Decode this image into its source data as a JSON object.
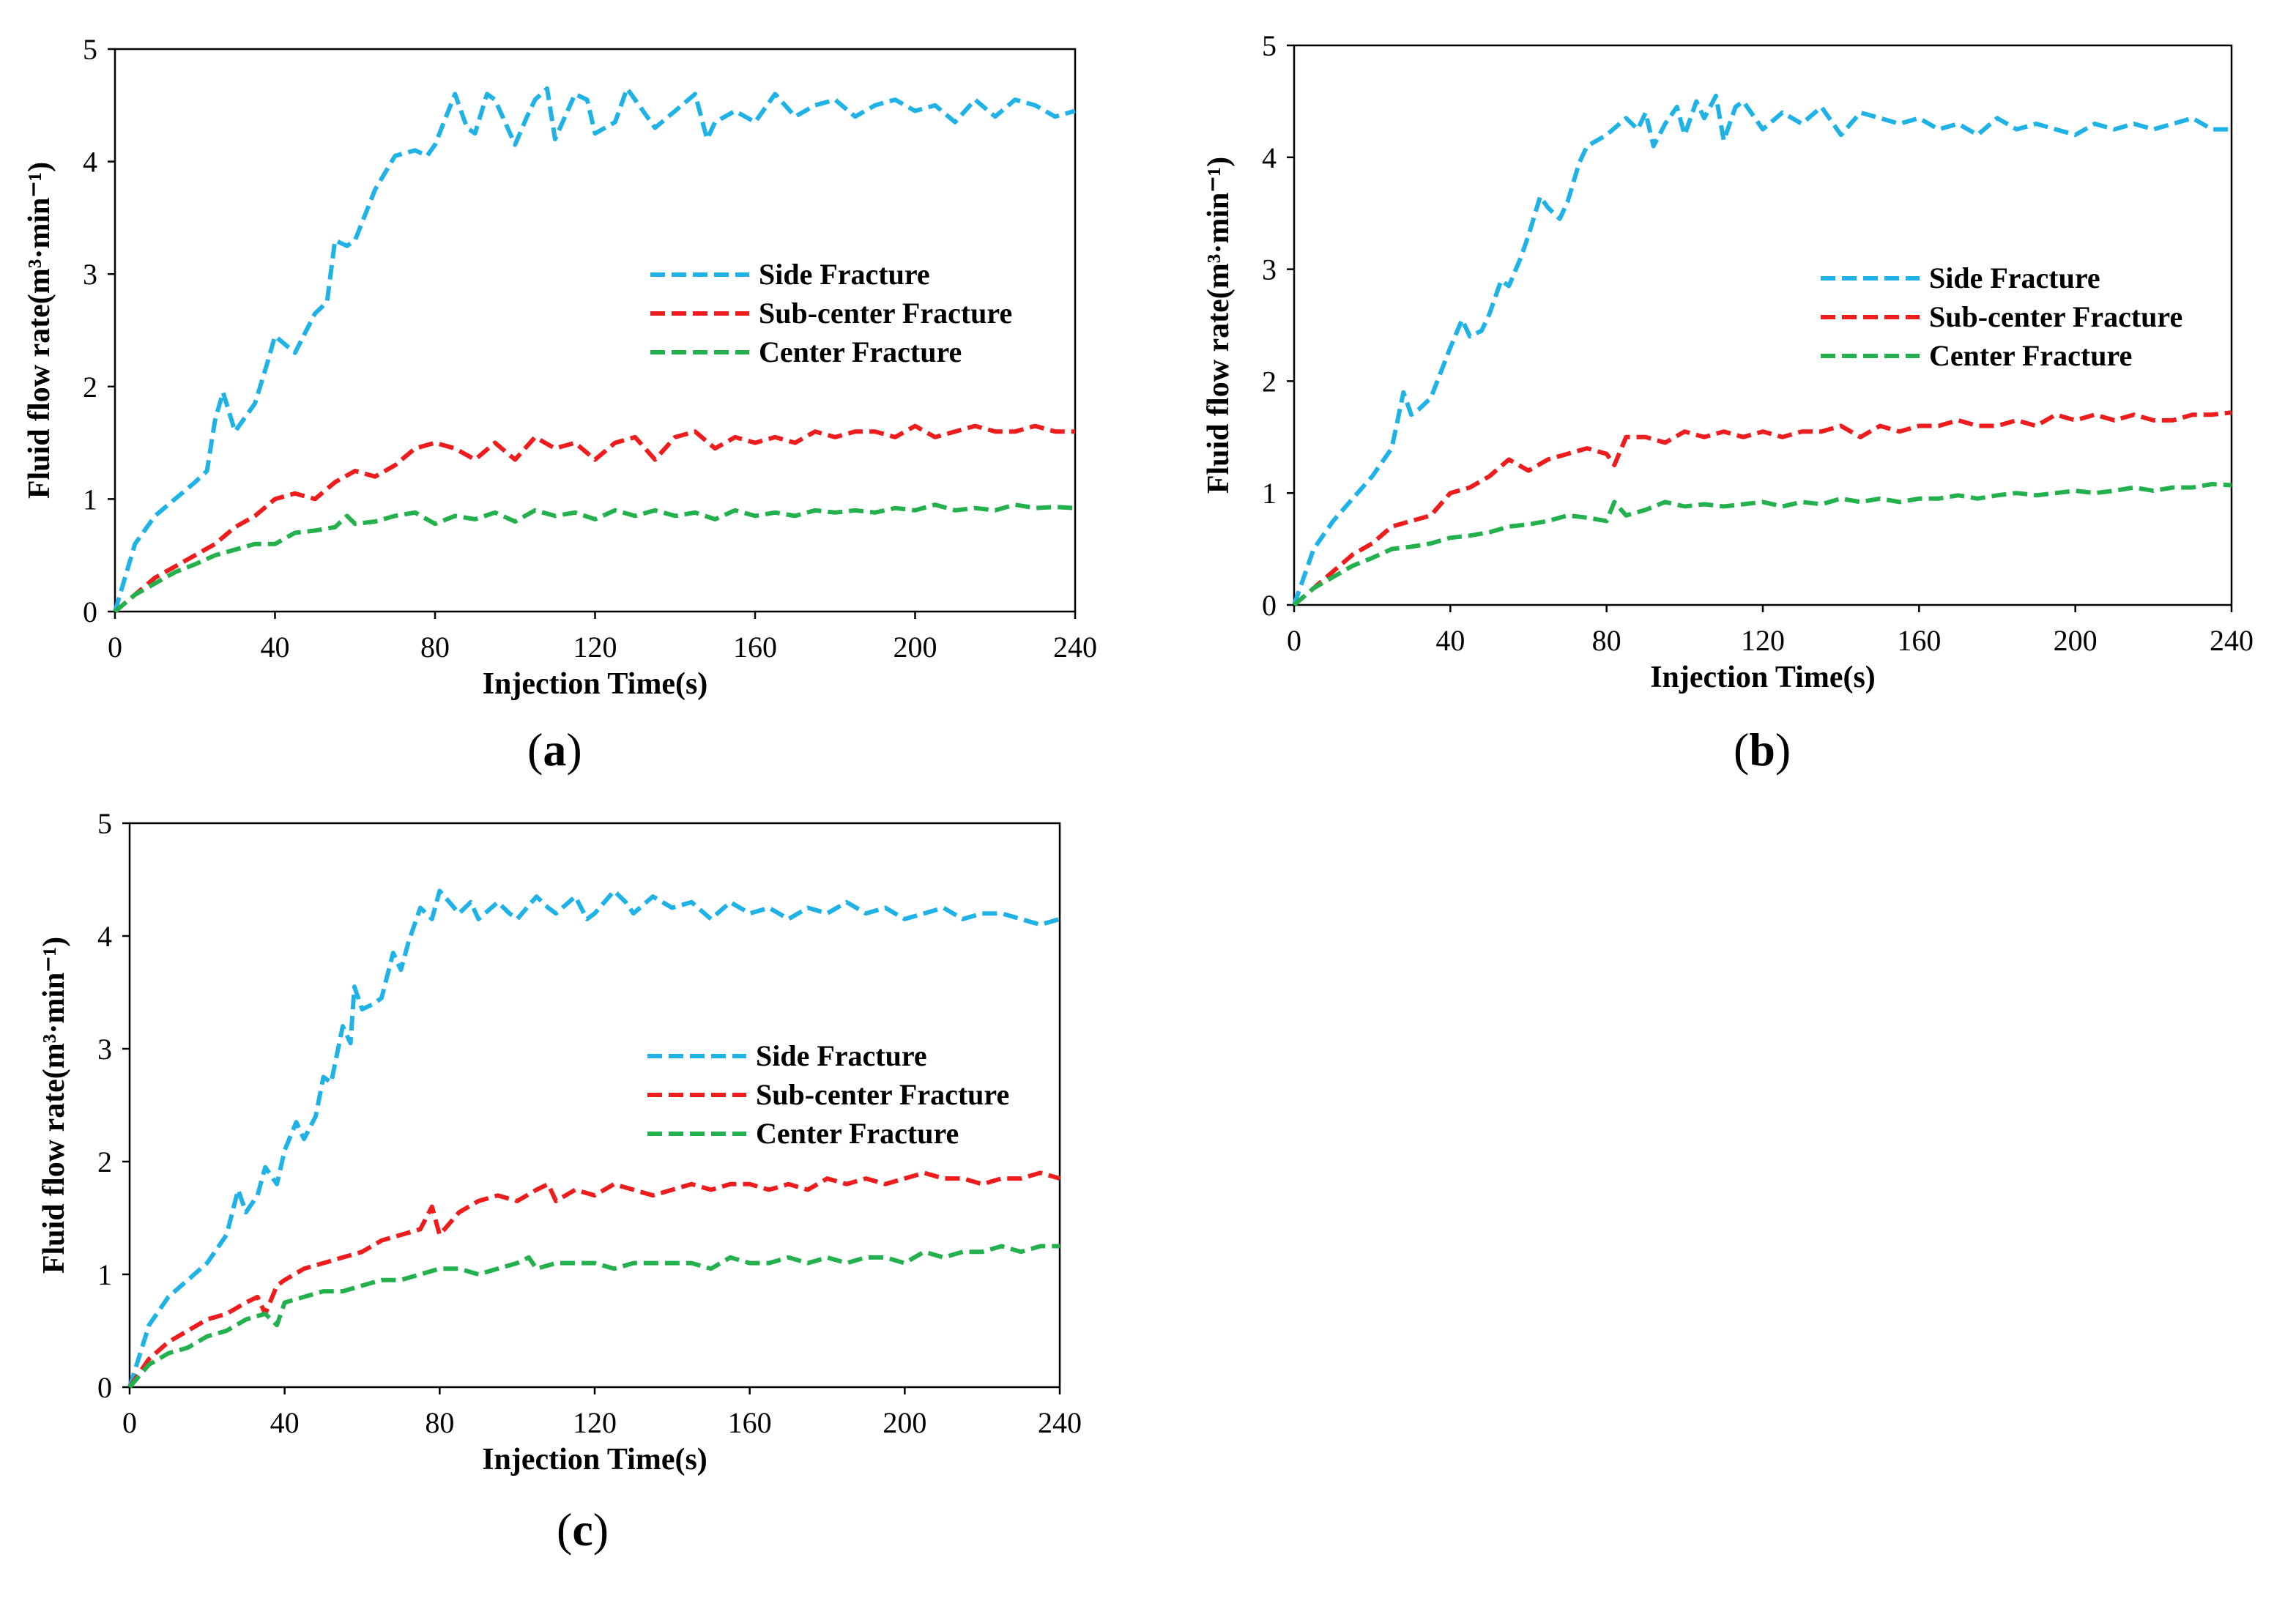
{
  "chart_data": [
    {
      "type": "line",
      "panel_label": "a",
      "xlabel": "Injection Time(s)",
      "ylabel": "Fluid flow rate(m³·min⁻¹)",
      "xlim": [
        0,
        240
      ],
      "ylim": [
        0,
        5
      ],
      "x_ticks": [
        "0",
        "40",
        "80",
        "120",
        "160",
        "200",
        "240"
      ],
      "y_ticks": [
        "0",
        "1",
        "2",
        "3",
        "4",
        "5"
      ],
      "legend_position": "right",
      "series": [
        {
          "name": "Side Fracture",
          "color": "#1fb2e6",
          "x": [
            0,
            5,
            10,
            15,
            20,
            23,
            25,
            27,
            30,
            35,
            38,
            40,
            45,
            50,
            53,
            55,
            58,
            60,
            65,
            70,
            75,
            78,
            80,
            85,
            88,
            90,
            93,
            95,
            100,
            103,
            105,
            108,
            110,
            115,
            118,
            120,
            125,
            128,
            130,
            135,
            140,
            145,
            148,
            150,
            155,
            160,
            165,
            170,
            175,
            180,
            185,
            190,
            195,
            200,
            205,
            210,
            215,
            220,
            225,
            230,
            235,
            240
          ],
          "y": [
            0,
            0.6,
            0.85,
            1.0,
            1.15,
            1.25,
            1.7,
            1.95,
            1.6,
            1.85,
            2.2,
            2.45,
            2.3,
            2.65,
            2.75,
            3.3,
            3.25,
            3.3,
            3.75,
            4.05,
            4.1,
            4.05,
            4.15,
            4.6,
            4.3,
            4.25,
            4.6,
            4.55,
            4.15,
            4.4,
            4.55,
            4.65,
            4.2,
            4.6,
            4.55,
            4.25,
            4.35,
            4.65,
            4.55,
            4.3,
            4.45,
            4.6,
            4.2,
            4.35,
            4.45,
            4.35,
            4.6,
            4.4,
            4.5,
            4.55,
            4.4,
            4.5,
            4.55,
            4.45,
            4.5,
            4.35,
            4.55,
            4.4,
            4.55,
            4.5,
            4.4,
            4.45
          ]
        },
        {
          "name": "Sub-center Fracture",
          "color": "#ee1c1c",
          "x": [
            0,
            5,
            10,
            15,
            20,
            25,
            30,
            35,
            40,
            45,
            50,
            55,
            60,
            65,
            70,
            75,
            80,
            85,
            90,
            95,
            100,
            105,
            110,
            115,
            120,
            125,
            130,
            135,
            140,
            145,
            150,
            155,
            160,
            165,
            170,
            175,
            180,
            185,
            190,
            195,
            200,
            205,
            210,
            215,
            220,
            225,
            230,
            235,
            240
          ],
          "y": [
            0,
            0.15,
            0.3,
            0.4,
            0.5,
            0.6,
            0.75,
            0.85,
            1.0,
            1.05,
            1.0,
            1.15,
            1.25,
            1.2,
            1.3,
            1.45,
            1.5,
            1.45,
            1.35,
            1.5,
            1.35,
            1.55,
            1.45,
            1.5,
            1.35,
            1.5,
            1.55,
            1.35,
            1.55,
            1.6,
            1.45,
            1.55,
            1.5,
            1.55,
            1.5,
            1.6,
            1.55,
            1.6,
            1.6,
            1.55,
            1.65,
            1.55,
            1.6,
            1.65,
            1.6,
            1.6,
            1.65,
            1.6,
            1.6
          ]
        },
        {
          "name": "Center Fracture",
          "color": "#22b14c",
          "x": [
            0,
            5,
            10,
            15,
            20,
            25,
            30,
            35,
            40,
            45,
            50,
            55,
            58,
            60,
            65,
            70,
            75,
            80,
            85,
            90,
            95,
            100,
            105,
            110,
            115,
            120,
            125,
            130,
            135,
            140,
            145,
            150,
            155,
            160,
            165,
            170,
            175,
            180,
            185,
            190,
            195,
            200,
            205,
            210,
            215,
            220,
            225,
            230,
            235,
            240
          ],
          "y": [
            0,
            0.15,
            0.25,
            0.35,
            0.42,
            0.5,
            0.55,
            0.6,
            0.6,
            0.7,
            0.72,
            0.75,
            0.85,
            0.78,
            0.8,
            0.85,
            0.88,
            0.78,
            0.85,
            0.82,
            0.88,
            0.8,
            0.9,
            0.85,
            0.88,
            0.82,
            0.9,
            0.85,
            0.9,
            0.85,
            0.88,
            0.82,
            0.9,
            0.85,
            0.88,
            0.85,
            0.9,
            0.88,
            0.9,
            0.88,
            0.92,
            0.9,
            0.95,
            0.9,
            0.92,
            0.9,
            0.95,
            0.92,
            0.93,
            0.92
          ]
        }
      ]
    },
    {
      "type": "line",
      "panel_label": "b",
      "xlabel": "Injection Time(s)",
      "ylabel": "Fluid flow rate(m³·min⁻¹)",
      "xlim": [
        0,
        240
      ],
      "ylim": [
        0,
        5
      ],
      "x_ticks": [
        "0",
        "40",
        "80",
        "120",
        "160",
        "200",
        "240"
      ],
      "y_ticks": [
        "0",
        "1",
        "2",
        "3",
        "4",
        "5"
      ],
      "legend_position": "right",
      "series": [
        {
          "name": "Side Fracture",
          "color": "#1fb2e6",
          "x": [
            0,
            5,
            10,
            15,
            20,
            25,
            28,
            30,
            32,
            35,
            40,
            43,
            45,
            48,
            50,
            53,
            55,
            58,
            60,
            63,
            65,
            68,
            70,
            73,
            75,
            80,
            85,
            88,
            90,
            92,
            95,
            98,
            100,
            103,
            105,
            108,
            110,
            113,
            115,
            120,
            125,
            130,
            135,
            140,
            145,
            150,
            155,
            160,
            165,
            170,
            175,
            180,
            185,
            190,
            195,
            200,
            205,
            210,
            215,
            220,
            225,
            230,
            235,
            240
          ],
          "y": [
            0,
            0.5,
            0.75,
            0.95,
            1.15,
            1.4,
            1.9,
            1.7,
            1.75,
            1.85,
            2.3,
            2.55,
            2.4,
            2.45,
            2.6,
            2.9,
            2.85,
            3.1,
            3.3,
            3.65,
            3.55,
            3.45,
            3.6,
            3.95,
            4.1,
            4.2,
            4.35,
            4.25,
            4.4,
            4.1,
            4.3,
            4.45,
            4.2,
            4.5,
            4.35,
            4.55,
            4.15,
            4.45,
            4.5,
            4.25,
            4.4,
            4.3,
            4.45,
            4.2,
            4.4,
            4.35,
            4.3,
            4.35,
            4.25,
            4.3,
            4.2,
            4.35,
            4.25,
            4.3,
            4.25,
            4.2,
            4.3,
            4.25,
            4.3,
            4.25,
            4.3,
            4.35,
            4.25,
            4.25
          ]
        },
        {
          "name": "Sub-center Fracture",
          "color": "#ee1c1c",
          "x": [
            0,
            5,
            10,
            15,
            20,
            25,
            30,
            35,
            40,
            45,
            50,
            55,
            60,
            65,
            70,
            75,
            80,
            82,
            85,
            90,
            95,
            100,
            105,
            110,
            115,
            120,
            125,
            130,
            135,
            140,
            145,
            150,
            155,
            160,
            165,
            170,
            175,
            180,
            185,
            190,
            195,
            200,
            205,
            210,
            215,
            220,
            225,
            230,
            235,
            240
          ],
          "y": [
            0,
            0.15,
            0.3,
            0.45,
            0.55,
            0.7,
            0.75,
            0.8,
            1.0,
            1.05,
            1.15,
            1.3,
            1.2,
            1.3,
            1.35,
            1.4,
            1.35,
            1.25,
            1.5,
            1.5,
            1.45,
            1.55,
            1.5,
            1.55,
            1.5,
            1.55,
            1.5,
            1.55,
            1.55,
            1.6,
            1.5,
            1.6,
            1.55,
            1.6,
            1.6,
            1.65,
            1.6,
            1.6,
            1.65,
            1.6,
            1.7,
            1.65,
            1.7,
            1.65,
            1.7,
            1.65,
            1.65,
            1.7,
            1.7,
            1.72
          ]
        },
        {
          "name": "Center Fracture",
          "color": "#22b14c",
          "x": [
            0,
            5,
            10,
            15,
            20,
            25,
            30,
            35,
            40,
            45,
            50,
            55,
            60,
            65,
            70,
            75,
            80,
            82,
            85,
            90,
            95,
            100,
            105,
            110,
            115,
            120,
            125,
            130,
            135,
            140,
            145,
            150,
            155,
            160,
            165,
            170,
            175,
            180,
            185,
            190,
            195,
            200,
            205,
            210,
            215,
            220,
            225,
            230,
            235,
            240
          ],
          "y": [
            0,
            0.15,
            0.25,
            0.35,
            0.42,
            0.5,
            0.52,
            0.55,
            0.6,
            0.62,
            0.65,
            0.7,
            0.72,
            0.75,
            0.8,
            0.78,
            0.75,
            0.92,
            0.8,
            0.85,
            0.92,
            0.88,
            0.9,
            0.88,
            0.9,
            0.92,
            0.88,
            0.92,
            0.9,
            0.95,
            0.92,
            0.95,
            0.92,
            0.95,
            0.95,
            0.98,
            0.95,
            0.98,
            1.0,
            0.98,
            1.0,
            1.02,
            1.0,
            1.02,
            1.05,
            1.02,
            1.05,
            1.05,
            1.08,
            1.07
          ]
        }
      ]
    },
    {
      "type": "line",
      "panel_label": "c",
      "xlabel": "Injection Time(s)",
      "ylabel": "Fluid flow rate(m³·min⁻¹)",
      "xlim": [
        0,
        240
      ],
      "ylim": [
        0,
        5
      ],
      "x_ticks": [
        "0",
        "40",
        "80",
        "120",
        "160",
        "200",
        "240"
      ],
      "y_ticks": [
        "0",
        "1",
        "2",
        "3",
        "4",
        "5"
      ],
      "legend_position": "right",
      "series": [
        {
          "name": "Side Fracture",
          "color": "#1fb2e6",
          "x": [
            0,
            5,
            10,
            15,
            20,
            25,
            28,
            30,
            33,
            35,
            38,
            40,
            43,
            45,
            48,
            50,
            52,
            55,
            57,
            58,
            60,
            63,
            65,
            68,
            70,
            72,
            75,
            78,
            80,
            85,
            88,
            90,
            95,
            98,
            100,
            105,
            108,
            110,
            115,
            118,
            120,
            125,
            128,
            130,
            135,
            140,
            145,
            150,
            155,
            160,
            165,
            170,
            175,
            180,
            185,
            190,
            195,
            200,
            205,
            210,
            215,
            220,
            225,
            230,
            235,
            240
          ],
          "y": [
            0,
            0.55,
            0.8,
            0.95,
            1.1,
            1.35,
            1.75,
            1.55,
            1.7,
            1.95,
            1.8,
            2.1,
            2.35,
            2.2,
            2.4,
            2.75,
            2.7,
            3.2,
            3.05,
            3.55,
            3.35,
            3.4,
            3.45,
            3.85,
            3.7,
            3.95,
            4.25,
            4.15,
            4.4,
            4.2,
            4.3,
            4.15,
            4.3,
            4.2,
            4.15,
            4.35,
            4.25,
            4.2,
            4.35,
            4.15,
            4.2,
            4.4,
            4.3,
            4.2,
            4.35,
            4.25,
            4.3,
            4.15,
            4.3,
            4.2,
            4.25,
            4.15,
            4.25,
            4.2,
            4.3,
            4.2,
            4.25,
            4.15,
            4.2,
            4.25,
            4.15,
            4.2,
            4.2,
            4.15,
            4.1,
            4.15
          ]
        },
        {
          "name": "Sub-center Fracture",
          "color": "#ee1c1c",
          "x": [
            0,
            5,
            10,
            15,
            20,
            25,
            30,
            33,
            35,
            38,
            40,
            45,
            50,
            55,
            60,
            65,
            70,
            75,
            78,
            80,
            85,
            90,
            95,
            100,
            105,
            108,
            110,
            115,
            120,
            125,
            130,
            135,
            140,
            145,
            150,
            155,
            160,
            165,
            170,
            175,
            180,
            185,
            190,
            195,
            200,
            205,
            210,
            215,
            220,
            225,
            230,
            235,
            240
          ],
          "y": [
            0,
            0.25,
            0.4,
            0.5,
            0.6,
            0.65,
            0.75,
            0.8,
            0.65,
            0.9,
            0.95,
            1.05,
            1.1,
            1.15,
            1.2,
            1.3,
            1.35,
            1.4,
            1.6,
            1.35,
            1.55,
            1.65,
            1.7,
            1.65,
            1.75,
            1.8,
            1.65,
            1.75,
            1.7,
            1.8,
            1.75,
            1.7,
            1.75,
            1.8,
            1.75,
            1.8,
            1.8,
            1.75,
            1.8,
            1.75,
            1.85,
            1.8,
            1.85,
            1.8,
            1.85,
            1.9,
            1.85,
            1.85,
            1.8,
            1.85,
            1.85,
            1.9,
            1.85
          ]
        },
        {
          "name": "Center Fracture",
          "color": "#22b14c",
          "x": [
            0,
            5,
            10,
            15,
            20,
            25,
            30,
            35,
            38,
            40,
            45,
            50,
            55,
            60,
            65,
            70,
            75,
            80,
            85,
            90,
            95,
            100,
            103,
            105,
            110,
            115,
            120,
            125,
            130,
            135,
            140,
            145,
            150,
            155,
            160,
            165,
            170,
            175,
            180,
            185,
            190,
            195,
            200,
            205,
            210,
            215,
            220,
            225,
            230,
            235,
            240
          ],
          "y": [
            0,
            0.2,
            0.3,
            0.35,
            0.45,
            0.5,
            0.6,
            0.65,
            0.55,
            0.75,
            0.8,
            0.85,
            0.85,
            0.9,
            0.95,
            0.95,
            1.0,
            1.05,
            1.05,
            1.0,
            1.05,
            1.1,
            1.15,
            1.05,
            1.1,
            1.1,
            1.1,
            1.05,
            1.1,
            1.1,
            1.1,
            1.1,
            1.05,
            1.15,
            1.1,
            1.1,
            1.15,
            1.1,
            1.15,
            1.1,
            1.15,
            1.15,
            1.1,
            1.2,
            1.15,
            1.2,
            1.2,
            1.25,
            1.2,
            1.25,
            1.25
          ]
        }
      ]
    }
  ]
}
